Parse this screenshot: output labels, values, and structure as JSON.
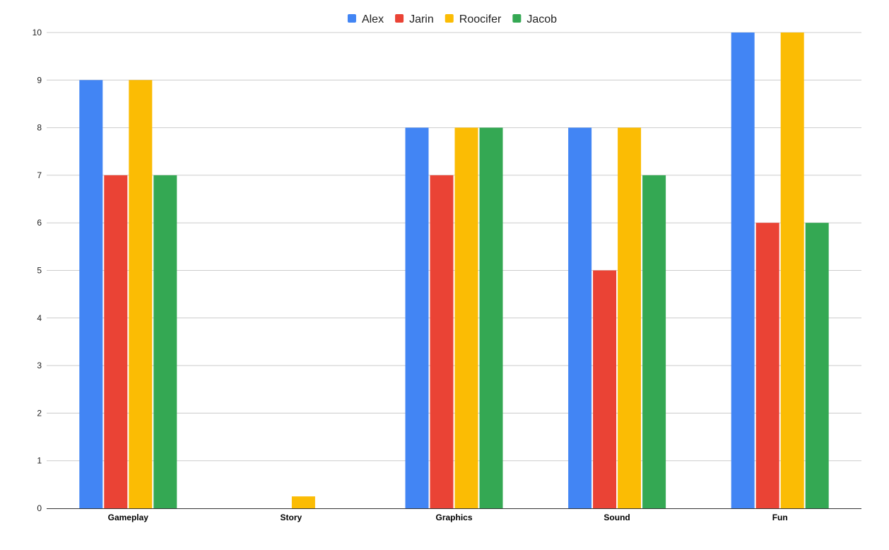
{
  "chart_data": {
    "type": "bar",
    "title": "",
    "xlabel": "",
    "ylabel": "",
    "categories": [
      "Gameplay",
      "Story",
      "Graphics",
      "Sound",
      "Fun"
    ],
    "series": [
      {
        "name": "Alex",
        "color": "#4285f4",
        "values": [
          9,
          0,
          8,
          8,
          10
        ]
      },
      {
        "name": "Jarin",
        "color": "#ea4335",
        "values": [
          7,
          0,
          7,
          5,
          6
        ]
      },
      {
        "name": "Roocifer",
        "color": "#fbbc04",
        "values": [
          9,
          0.25,
          8,
          8,
          10
        ]
      },
      {
        "name": "Jacob",
        "color": "#34a853",
        "values": [
          7,
          0,
          8,
          7,
          6
        ]
      }
    ],
    "ylim": [
      0,
      10
    ],
    "yticks": [
      "0",
      "1",
      "2",
      "3",
      "4",
      "5",
      "6",
      "7",
      "8",
      "9",
      "10"
    ],
    "grid": true,
    "legend_position": "top-center"
  }
}
